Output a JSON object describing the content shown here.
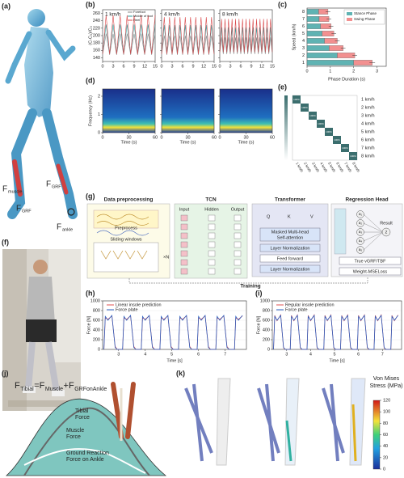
{
  "panel_labels": [
    "(a)",
    "(b)",
    "(c)",
    "(d)",
    "(e)",
    "(f)",
    "(g)",
    "(h)",
    "(i)",
    "(j)",
    "(k)"
  ],
  "a": {
    "labels": [
      {
        "main": "F",
        "sub": "muscle"
      },
      {
        "main": "F",
        "sub": "GRF"
      },
      {
        "main": "F",
        "sub": "GRF"
      },
      {
        "main": "F",
        "sub": "ankle"
      }
    ]
  },
  "b": {
    "ylabel": "(C-C₀)/C₀",
    "ylim": [
      130,
      270
    ],
    "yticks": [
      140,
      160,
      180,
      200,
      220,
      240,
      260
    ],
    "xlim": [
      0,
      15
    ],
    "xticks": [
      0,
      3,
      6,
      9,
      12,
      15
    ],
    "legend": [
      {
        "name": "Forefoot",
        "color": "#8a8a8a"
      },
      {
        "name": "Middle of foot",
        "color": "#2f9a9a"
      },
      {
        "name": "Heel",
        "color": "#d9484a"
      }
    ],
    "subplots": [
      {
        "title": "1 km/h",
        "x": [
          0,
          1,
          2,
          3,
          4,
          5,
          6,
          7,
          8,
          9,
          10,
          11,
          12,
          13,
          14,
          15
        ],
        "series": [
          [
            148,
            205,
            148,
            205,
            148,
            205,
            148,
            205,
            148,
            205,
            148,
            205,
            148,
            205,
            148,
            205
          ],
          [
            152,
            230,
            152,
            230,
            152,
            230,
            152,
            230,
            152,
            230,
            152,
            230,
            152,
            230,
            152,
            230
          ],
          [
            150,
            255,
            150,
            255,
            150,
            255,
            150,
            255,
            150,
            255,
            150,
            255,
            150,
            255,
            150,
            255
          ]
        ]
      },
      {
        "title": "4 km/h",
        "x": [
          0,
          0.75,
          1.5,
          2.25,
          3,
          3.75,
          4.5,
          5.25,
          6,
          6.75,
          7.5,
          8.25,
          9,
          9.75,
          10.5,
          11.25,
          12,
          12.75,
          13.5,
          14.25,
          15
        ],
        "series": [
          [
            148,
            200,
            148,
            200,
            148,
            200,
            148,
            200,
            148,
            200,
            148,
            200,
            148,
            200,
            148,
            200,
            148,
            200,
            148,
            200,
            148
          ],
          [
            152,
            228,
            152,
            228,
            152,
            228,
            152,
            228,
            152,
            228,
            152,
            228,
            152,
            228,
            152,
            228,
            152,
            228,
            152,
            228,
            152
          ],
          [
            150,
            250,
            150,
            250,
            150,
            250,
            150,
            250,
            150,
            250,
            150,
            250,
            150,
            250,
            150,
            250,
            150,
            250,
            150,
            250,
            150
          ]
        ]
      },
      {
        "title": "8 km/h",
        "x": [
          0,
          0.5,
          1,
          1.5,
          2,
          2.5,
          3,
          3.5,
          4,
          4.5,
          5,
          5.5,
          6,
          6.5,
          7,
          7.5,
          8,
          8.5,
          9,
          9.5,
          10,
          10.5,
          11,
          11.5,
          12,
          12.5,
          13,
          13.5,
          14,
          14.5,
          15
        ],
        "series": [
          [
            150,
            195,
            150,
            195,
            150,
            195,
            150,
            195,
            150,
            195,
            150,
            195,
            150,
            195,
            150,
            195,
            150,
            195,
            150,
            195,
            150,
            195,
            150,
            195,
            150,
            195,
            150,
            195,
            150,
            195,
            150
          ],
          [
            155,
            222,
            155,
            222,
            155,
            222,
            155,
            222,
            155,
            222,
            155,
            222,
            155,
            222,
            155,
            222,
            155,
            222,
            155,
            222,
            155,
            222,
            155,
            222,
            155,
            222,
            155,
            222,
            155,
            222,
            155
          ],
          [
            155,
            245,
            155,
            245,
            155,
            245,
            155,
            245,
            155,
            245,
            155,
            245,
            155,
            245,
            155,
            245,
            155,
            245,
            155,
            245,
            155,
            245,
            155,
            245,
            155,
            245,
            155,
            245,
            155,
            245,
            155
          ]
        ]
      }
    ]
  },
  "c": {
    "type": "bar",
    "categories": [
      "8",
      "7",
      "6",
      "5",
      "4",
      "3",
      "2",
      "1"
    ],
    "ylabel": "Speed (km/h)",
    "xlabel": "Phase Duration (s)",
    "xlim": [
      0,
      3.4
    ],
    "xticks": [
      0,
      1,
      2,
      3
    ],
    "series": [
      {
        "name": "Stance Phase",
        "color": "#5fb3b3",
        "values": [
          0.5,
          0.52,
          0.58,
          0.65,
          0.75,
          0.95,
          1.3,
          2.0
        ]
      },
      {
        "name": "Swing Phase",
        "color": "#f29090",
        "values": [
          0.4,
          0.42,
          0.45,
          0.5,
          0.55,
          0.6,
          0.75,
          0.8
        ],
        "errors": [
          0.1,
          0.1,
          0.1,
          0.1,
          0.1,
          0.1,
          0.1,
          0.12
        ]
      }
    ]
  },
  "d": {
    "ylabel": "Frequency (Hz)",
    "xlabel": "Time (s)",
    "ylim": [
      0,
      2.4
    ],
    "yticks": [
      0,
      1,
      2
    ],
    "xlim": [
      0,
      60
    ],
    "xticks": [
      0,
      30,
      60
    ]
  },
  "e": {
    "categories": [
      "1 km/h",
      "2 km/h",
      "3 km/h",
      "4 km/h",
      "5 km/h",
      "6 km/h",
      "7 km/h",
      "8 km/h"
    ],
    "values": [
      100,
      100,
      100,
      100,
      100,
      100,
      100,
      100
    ],
    "value_labels": [
      "100%",
      "100%",
      "100%",
      "100%",
      "100%",
      "100%",
      "100%",
      "100%"
    ]
  },
  "g": {
    "sections": [
      "Data preprocessing",
      "TCN",
      "Transformer",
      "Regression Head"
    ],
    "preprocess": "Preprocess",
    "sliding": "Sliding windows",
    "times_n": "×N",
    "tcn_layers": [
      "Input",
      "Hidden",
      "Output"
    ],
    "qkv": [
      "Q",
      "K",
      "V"
    ],
    "blocks": [
      "Masked Multi-head",
      "Self-attention",
      "Layer Normalization",
      "Feed forward",
      "Layer Normalization"
    ],
    "nodes": [
      "a₁",
      "a₂",
      "a₃",
      "a₄",
      "a₅"
    ],
    "result": "Result",
    "z": "z",
    "truth": "True vGRF/TBF",
    "loss": "Weight-MSELoss",
    "training": "Training"
  },
  "h": {
    "type": "line",
    "ylabel": "Force [N]",
    "xlabel": "Time [s]",
    "ylim": [
      0,
      1000
    ],
    "yticks": [
      0,
      200,
      400,
      600,
      800,
      1000
    ],
    "xlim": [
      2.4,
      7.8
    ],
    "xticks": [
      3,
      4,
      5,
      6,
      7
    ],
    "x": [
      2.45,
      2.5,
      2.6,
      2.75,
      2.87,
      2.95,
      3.15,
      3.2,
      3.3,
      3.45,
      3.57,
      3.65,
      3.85,
      3.9,
      4.0,
      4.15,
      4.27,
      4.35,
      4.55,
      4.6,
      4.7,
      4.85,
      4.97,
      5.05,
      5.25,
      5.3,
      5.4,
      5.55,
      5.67,
      5.75,
      5.95,
      6.0,
      6.1,
      6.25,
      6.37,
      6.45,
      6.65,
      6.7,
      6.8,
      6.95,
      7.07,
      7.15,
      7.35,
      7.4,
      7.5,
      7.65
    ],
    "series": [
      {
        "name": "Linear insole prediction",
        "color": "#e05050",
        "values": [
          0,
          650,
          620,
          690,
          60,
          0,
          0,
          650,
          620,
          690,
          60,
          0,
          0,
          650,
          620,
          690,
          60,
          0,
          0,
          650,
          620,
          690,
          60,
          0,
          0,
          650,
          620,
          690,
          60,
          0,
          0,
          650,
          620,
          690,
          60,
          0,
          0,
          650,
          620,
          690,
          60,
          0,
          0,
          650,
          620,
          690
        ]
      },
      {
        "name": "Force plate",
        "color": "#2a5fc0",
        "values": [
          0,
          680,
          600,
          700,
          40,
          0,
          0,
          680,
          600,
          700,
          40,
          0,
          0,
          680,
          600,
          700,
          40,
          0,
          0,
          680,
          600,
          700,
          40,
          0,
          0,
          680,
          600,
          700,
          40,
          0,
          0,
          680,
          600,
          700,
          40,
          0,
          0,
          680,
          600,
          700,
          40,
          0,
          0,
          680,
          600,
          700
        ]
      }
    ]
  },
  "i": {
    "type": "line",
    "ylabel": "Force [N]",
    "xlabel": "Time [s]",
    "ylim": [
      0,
      1000
    ],
    "yticks": [
      0,
      200,
      400,
      600,
      800,
      1000
    ],
    "xlim": [
      2.4,
      7.8
    ],
    "xticks": [
      3,
      4,
      5,
      6,
      7
    ],
    "x": [
      2.45,
      2.5,
      2.6,
      2.75,
      2.87,
      2.95,
      3.15,
      3.2,
      3.3,
      3.45,
      3.57,
      3.65,
      3.85,
      3.9,
      4.0,
      4.15,
      4.27,
      4.35,
      4.55,
      4.6,
      4.7,
      4.85,
      4.97,
      5.05,
      5.25,
      5.3,
      5.4,
      5.55,
      5.67,
      5.75,
      5.95,
      6.0,
      6.1,
      6.25,
      6.37,
      6.45,
      6.65,
      6.7,
      6.8,
      6.95,
      7.07,
      7.15,
      7.35,
      7.4,
      7.5,
      7.65
    ],
    "series": [
      {
        "name": "Regular insole prediction",
        "color": "#e05050",
        "values": [
          0,
          700,
          590,
          710,
          30,
          0,
          0,
          700,
          590,
          710,
          30,
          0,
          0,
          700,
          590,
          710,
          30,
          0,
          0,
          700,
          590,
          710,
          30,
          0,
          0,
          700,
          590,
          710,
          30,
          0,
          0,
          700,
          590,
          710,
          30,
          0,
          0,
          700,
          590,
          710,
          30,
          0,
          0,
          700,
          590,
          710
        ]
      },
      {
        "name": "Force plate",
        "color": "#2a5fc0",
        "values": [
          0,
          680,
          600,
          700,
          40,
          0,
          0,
          680,
          600,
          700,
          40,
          0,
          0,
          680,
          600,
          700,
          40,
          0,
          0,
          680,
          600,
          700,
          40,
          0,
          0,
          680,
          600,
          700,
          40,
          0,
          0,
          680,
          600,
          700,
          40,
          0,
          0,
          680,
          600,
          700,
          40,
          0,
          0,
          680,
          600,
          700
        ]
      }
    ]
  },
  "j": {
    "formula": [
      "F",
      "Tibial",
      "=F",
      "Muscle",
      "+F",
      "GRFonAnkle"
    ],
    "labels": [
      "Tibial",
      "Force",
      "Muscle",
      "Force",
      "Ground Reaction",
      "Force on Ankle"
    ]
  },
  "k": {
    "title": [
      "Von Mises",
      "Stress (MPa)"
    ],
    "ylim": [
      0,
      120
    ],
    "yticks": [
      0,
      20,
      40,
      60,
      80,
      100,
      120
    ]
  }
}
